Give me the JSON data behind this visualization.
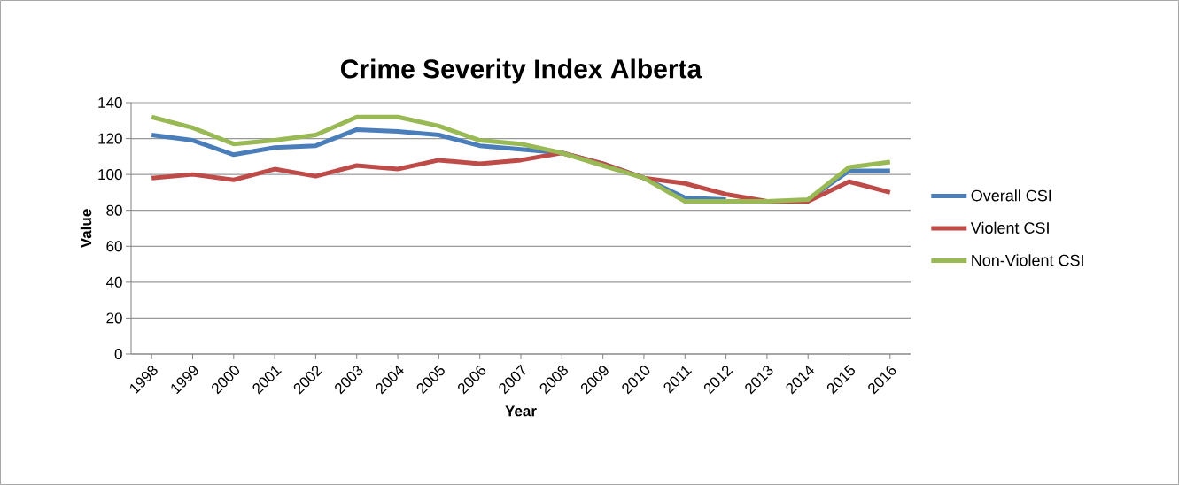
{
  "chart_data": {
    "type": "line",
    "title": "Crime Severity Index Alberta",
    "xlabel": "Year",
    "ylabel": "Value",
    "categories": [
      "1998",
      "1999",
      "2000",
      "2001",
      "2002",
      "2003",
      "2004",
      "2005",
      "2006",
      "2007",
      "2008",
      "2009",
      "2010",
      "2011",
      "2012",
      "2013",
      "2014",
      "2015",
      "2016"
    ],
    "series": [
      {
        "name": "Overall CSI",
        "color": "#4a7ebb",
        "values": [
          122,
          119,
          111,
          115,
          116,
          125,
          124,
          122,
          116,
          114,
          112,
          106,
          98,
          87,
          86,
          null,
          86,
          102,
          102
        ]
      },
      {
        "name": "Violent CSI",
        "color": "#be4b48",
        "values": [
          98,
          100,
          97,
          103,
          99,
          105,
          103,
          108,
          106,
          108,
          112,
          106,
          98,
          95,
          89,
          85,
          85,
          96,
          90
        ]
      },
      {
        "name": "Non-Violent CSI",
        "color": "#98b954",
        "values": [
          132,
          126,
          117,
          119,
          122,
          132,
          132,
          127,
          119,
          117,
          112,
          105,
          98,
          85,
          85,
          85,
          86,
          104,
          107
        ]
      }
    ],
    "ylim": [
      0,
      140
    ],
    "yticks": [
      0,
      20,
      40,
      60,
      80,
      100,
      120,
      140
    ],
    "grid": "y",
    "legend": "right",
    "marker": "none",
    "line_style": "solid"
  }
}
